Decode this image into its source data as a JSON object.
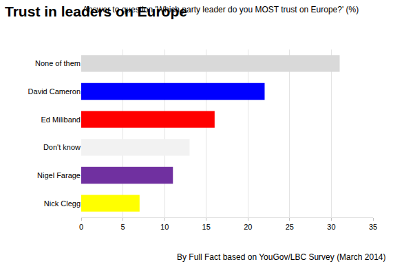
{
  "chart_data": {
    "type": "bar",
    "title": "Trust in leaders on Europe",
    "subtitle": "Answer to question 'Which party leader do you MOST trust on Europe?' (%)",
    "orientation": "horizontal",
    "categories": [
      "None of them",
      "David Cameron",
      "Ed Miliband",
      "Don't know",
      "Nigel Farage",
      "Nick Clegg"
    ],
    "values": [
      31,
      22,
      16,
      13,
      11,
      7
    ],
    "colors": [
      "#d9d9d9",
      "#0000ff",
      "#ff0000",
      "#f2f2f2",
      "#7030a0",
      "#ffff00"
    ],
    "xlim": [
      0,
      35
    ],
    "xticks": [
      0,
      5,
      10,
      15,
      20,
      25,
      30,
      35
    ],
    "grid": true,
    "annotations": [
      "By Full Fact based on YouGov/LBC Survey (March 2014)"
    ]
  }
}
